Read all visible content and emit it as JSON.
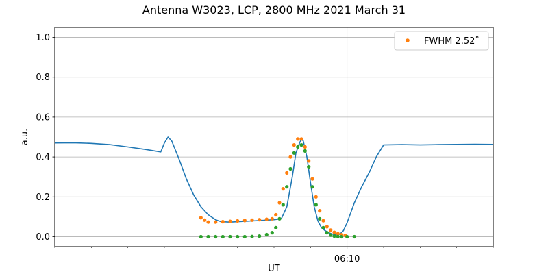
{
  "chart_data": {
    "type": "scatter",
    "title": "Antenna W3023, LCP, 2800 MHz 2021 March 31",
    "xlabel": "UT",
    "ylabel": "a.u.",
    "ylim": [
      -0.05,
      1.05
    ],
    "xlim_minutes": [
      0.0,
      12.0
    ],
    "x_tick_labels": [
      {
        "pos": 8.0,
        "label": "06:10"
      }
    ],
    "y_ticks": [
      0.0,
      0.2,
      0.4,
      0.6,
      0.8,
      1.0
    ],
    "y_tick_labels": [
      "0.0",
      "0.2",
      "0.4",
      "0.6",
      "0.8",
      "1.0"
    ],
    "grid": true,
    "legend": {
      "position": "upper right",
      "entries": [
        {
          "label": "FWHM 2.52$^\\circ$",
          "display": "FWHM 2.52˚",
          "color": "#ff7f0e",
          "marker": "dot"
        }
      ]
    },
    "series": [
      {
        "color": "#1f77b4",
        "style": "line",
        "points": [
          [
            0.0,
            0.47
          ],
          [
            0.5,
            0.471
          ],
          [
            1.0,
            0.468
          ],
          [
            1.5,
            0.462
          ],
          [
            2.0,
            0.45
          ],
          [
            2.5,
            0.437
          ],
          [
            2.9,
            0.425
          ],
          [
            3.0,
            0.47
          ],
          [
            3.1,
            0.5
          ],
          [
            3.2,
            0.48
          ],
          [
            3.4,
            0.39
          ],
          [
            3.6,
            0.29
          ],
          [
            3.8,
            0.21
          ],
          [
            4.0,
            0.15
          ],
          [
            4.2,
            0.11
          ],
          [
            4.4,
            0.085
          ],
          [
            4.55,
            0.075
          ],
          [
            4.8,
            0.073
          ],
          [
            5.0,
            0.075
          ],
          [
            5.2,
            0.077
          ],
          [
            5.4,
            0.079
          ],
          [
            5.6,
            0.081
          ],
          [
            5.8,
            0.083
          ],
          [
            6.0,
            0.085
          ],
          [
            6.2,
            0.09
          ],
          [
            6.35,
            0.15
          ],
          [
            6.5,
            0.3
          ],
          [
            6.6,
            0.42
          ],
          [
            6.7,
            0.47
          ],
          [
            6.75,
            0.49
          ],
          [
            6.8,
            0.48
          ],
          [
            6.9,
            0.4
          ],
          [
            7.0,
            0.27
          ],
          [
            7.1,
            0.15
          ],
          [
            7.2,
            0.08
          ],
          [
            7.3,
            0.045
          ],
          [
            7.4,
            0.03
          ],
          [
            7.5,
            0.02
          ],
          [
            7.6,
            0.013
          ],
          [
            7.7,
            0.009
          ],
          [
            7.8,
            0.012
          ],
          [
            7.9,
            0.03
          ],
          [
            8.0,
            0.07
          ],
          [
            8.2,
            0.17
          ],
          [
            8.4,
            0.25
          ],
          [
            8.6,
            0.32
          ],
          [
            8.8,
            0.4
          ],
          [
            9.0,
            0.46
          ],
          [
            9.5,
            0.462
          ],
          [
            10.0,
            0.46
          ],
          [
            10.5,
            0.462
          ],
          [
            11.0,
            0.463
          ],
          [
            11.5,
            0.464
          ],
          [
            12.0,
            0.463
          ]
        ]
      },
      {
        "color": "#ff7f0e",
        "style": "dots",
        "points": [
          [
            4.0,
            0.095
          ],
          [
            4.1,
            0.083
          ],
          [
            4.2,
            0.073
          ],
          [
            4.4,
            0.073
          ],
          [
            4.6,
            0.075
          ],
          [
            4.8,
            0.077
          ],
          [
            5.0,
            0.079
          ],
          [
            5.2,
            0.081
          ],
          [
            5.4,
            0.083
          ],
          [
            5.6,
            0.085
          ],
          [
            5.8,
            0.087
          ],
          [
            5.95,
            0.09
          ],
          [
            6.05,
            0.11
          ],
          [
            6.15,
            0.17
          ],
          [
            6.25,
            0.24
          ],
          [
            6.35,
            0.32
          ],
          [
            6.45,
            0.4
          ],
          [
            6.55,
            0.46
          ],
          [
            6.65,
            0.49
          ],
          [
            6.75,
            0.49
          ],
          [
            6.85,
            0.45
          ],
          [
            6.95,
            0.38
          ],
          [
            7.05,
            0.29
          ],
          [
            7.15,
            0.2
          ],
          [
            7.25,
            0.13
          ],
          [
            7.35,
            0.08
          ],
          [
            7.45,
            0.05
          ],
          [
            7.55,
            0.033
          ],
          [
            7.65,
            0.022
          ],
          [
            7.75,
            0.015
          ],
          [
            7.85,
            0.01
          ],
          [
            7.95,
            0.006
          ]
        ]
      },
      {
        "color": "#2ca02c",
        "style": "dots",
        "points": [
          [
            4.0,
            0.0
          ],
          [
            4.2,
            0.0
          ],
          [
            4.4,
            0.0
          ],
          [
            4.6,
            0.0
          ],
          [
            4.8,
            0.0
          ],
          [
            5.0,
            0.0
          ],
          [
            5.2,
            0.0
          ],
          [
            5.4,
            0.001
          ],
          [
            5.6,
            0.003
          ],
          [
            5.8,
            0.01
          ],
          [
            5.95,
            0.02
          ],
          [
            6.05,
            0.045
          ],
          [
            6.15,
            0.09
          ],
          [
            6.25,
            0.16
          ],
          [
            6.35,
            0.25
          ],
          [
            6.45,
            0.34
          ],
          [
            6.55,
            0.42
          ],
          [
            6.65,
            0.45
          ],
          [
            6.75,
            0.46
          ],
          [
            6.85,
            0.43
          ],
          [
            6.95,
            0.35
          ],
          [
            7.05,
            0.25
          ],
          [
            7.15,
            0.16
          ],
          [
            7.25,
            0.09
          ],
          [
            7.35,
            0.045
          ],
          [
            7.45,
            0.02
          ],
          [
            7.55,
            0.008
          ],
          [
            7.65,
            0.003
          ],
          [
            7.75,
            0.001
          ],
          [
            7.85,
            0.0
          ],
          [
            8.0,
            0.0
          ],
          [
            8.2,
            0.0
          ]
        ]
      }
    ]
  }
}
